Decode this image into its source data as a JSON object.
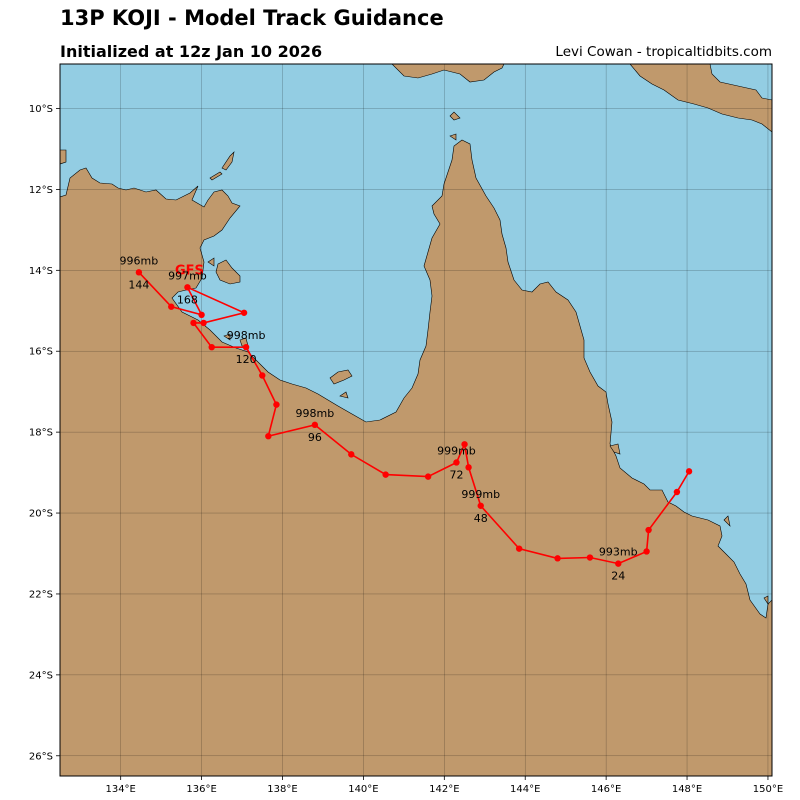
{
  "header": {
    "title": "13P KOJI - Model Track Guidance",
    "subtitle": "Initialized at 12z Jan 10 2026",
    "credit": "Levi Cowan - tropicaltidbits.com"
  },
  "colors": {
    "ocean": "#93cde3",
    "land": "#c0996c",
    "track": "#ff0000",
    "grid": "#000000"
  },
  "axes": {
    "lon_range": [
      132.5,
      150.1
    ],
    "lat_range": [
      -26.5,
      -8.9
    ],
    "lon_ticks": [
      {
        "v": 134,
        "label": "134°E"
      },
      {
        "v": 136,
        "label": "136°E"
      },
      {
        "v": 138,
        "label": "138°E"
      },
      {
        "v": 140,
        "label": "140°E"
      },
      {
        "v": 142,
        "label": "142°E"
      },
      {
        "v": 144,
        "label": "144°E"
      },
      {
        "v": 146,
        "label": "146°E"
      },
      {
        "v": 148,
        "label": "148°E"
      },
      {
        "v": 150,
        "label": "150°E"
      }
    ],
    "lat_ticks": [
      {
        "v": -10,
        "label": "10°S"
      },
      {
        "v": -12,
        "label": "12°S"
      },
      {
        "v": -14,
        "label": "14°S"
      },
      {
        "v": -16,
        "label": "16°S"
      },
      {
        "v": -18,
        "label": "18°S"
      },
      {
        "v": -20,
        "label": "20°S"
      },
      {
        "v": -22,
        "label": "22°S"
      },
      {
        "v": -24,
        "label": "24°S"
      },
      {
        "v": -26,
        "label": "26°S"
      }
    ]
  },
  "tracks": [
    {
      "model": "GFS",
      "model_label_position": [
        135.7,
        -14.1
      ],
      "points": [
        [
          148.05,
          -18.97
        ],
        [
          147.75,
          -19.48
        ],
        [
          147.05,
          -20.42
        ],
        [
          147.0,
          -20.95
        ],
        [
          146.3,
          -21.25
        ],
        [
          145.6,
          -21.1
        ],
        [
          144.8,
          -21.12
        ],
        [
          143.85,
          -20.88
        ],
        [
          142.9,
          -19.82
        ],
        [
          142.6,
          -18.87
        ],
        [
          142.5,
          -18.3
        ],
        [
          142.3,
          -18.75
        ],
        [
          141.6,
          -19.1
        ],
        [
          140.55,
          -19.05
        ],
        [
          139.7,
          -18.55
        ],
        [
          138.8,
          -17.82
        ],
        [
          137.65,
          -18.1
        ],
        [
          137.85,
          -17.32
        ],
        [
          137.5,
          -16.6
        ],
        [
          137.1,
          -15.9
        ],
        [
          136.25,
          -15.9
        ],
        [
          135.8,
          -15.3
        ],
        [
          136.05,
          -15.3
        ],
        [
          137.05,
          -15.05
        ],
        [
          135.65,
          -14.42
        ],
        [
          136.0,
          -15.1
        ],
        [
          135.25,
          -14.9
        ],
        [
          134.45,
          -14.05
        ]
      ],
      "annotations": [
        {
          "label": "24",
          "lon": 146.3,
          "lat": -21.25,
          "pressure": "993mb"
        },
        {
          "label": "48",
          "lon": 142.9,
          "lat": -19.82,
          "pressure": "999mb"
        },
        {
          "label": "72",
          "lon": 142.3,
          "lat": -18.75,
          "pressure": "999mb"
        },
        {
          "label": "96",
          "lon": 138.8,
          "lat": -17.82,
          "pressure": "998mb"
        },
        {
          "label": "120",
          "lon": 137.1,
          "lat": -15.9,
          "pressure": "998mb"
        },
        {
          "label": "144",
          "lon": 134.45,
          "lat": -14.05,
          "pressure": "996mb"
        },
        {
          "label": "168",
          "lon": 135.65,
          "lat": -14.42,
          "pressure": "997mb"
        }
      ]
    }
  ]
}
